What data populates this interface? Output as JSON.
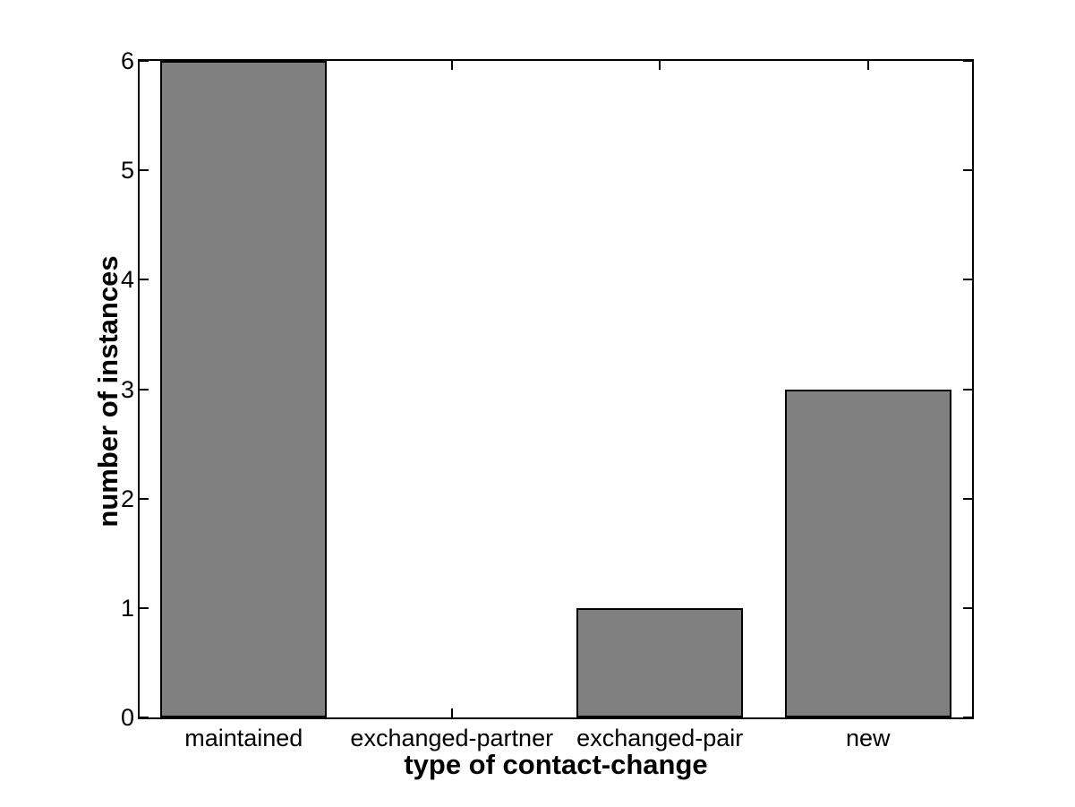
{
  "chart_data": {
    "type": "bar",
    "title": "",
    "categories": [
      "maintained",
      "exchanged-partner",
      "exchanged-pair",
      "new"
    ],
    "values": [
      6,
      0,
      1,
      3
    ],
    "xlabel": "type of contact-change",
    "ylabel": "number of instances",
    "yticks": [
      0,
      1,
      2,
      3,
      4,
      5,
      6
    ],
    "ytick_labels": [
      "0",
      "1",
      "2",
      "3",
      "4",
      "5",
      "6"
    ],
    "ylim": [
      0,
      6
    ],
    "bar_width_frac": 0.8,
    "grid": false,
    "legend": null,
    "colors": {
      "bar_fill": "#808080",
      "bar_edge": "#000000",
      "axis": "#000000",
      "background": "#ffffff",
      "text": "#000000"
    }
  }
}
